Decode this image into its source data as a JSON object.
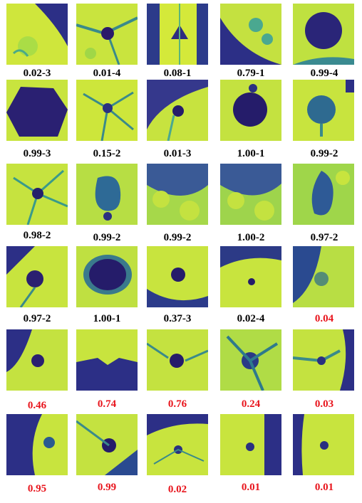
{
  "colors": {
    "black_label": "#000000",
    "red_label": "#e8141c",
    "tissue_bright": "#d8e93a",
    "tissue_mid": "#94d44a",
    "tissue_green": "#2fb47c",
    "teal": "#2a788e",
    "dark": "#3b1f7a",
    "navy": "#2c2f86"
  },
  "rows": [
    {
      "cells": [
        {
          "label": "0.02-3",
          "label_color": "black"
        },
        {
          "label": "0.01-4",
          "label_color": "black"
        },
        {
          "label": "0.08-1",
          "label_color": "black"
        },
        {
          "label": "0.79-1",
          "label_color": "black"
        },
        {
          "label": "0.99-4",
          "label_color": "black"
        }
      ]
    },
    {
      "cells": [
        {
          "label": "0.99-3",
          "label_color": "black"
        },
        {
          "label": "0.15-2",
          "label_color": "black"
        },
        {
          "label": "0.01-3",
          "label_color": "black"
        },
        {
          "label": "1.00-1",
          "label_color": "black"
        },
        {
          "label": "0.99-2",
          "label_color": "black"
        }
      ]
    },
    {
      "cells": [
        {
          "label": "0.98-2",
          "label_color": "black"
        },
        {
          "label": "0.99-2",
          "label_color": "black"
        },
        {
          "label": "0.99-2",
          "label_color": "black"
        },
        {
          "label": "1.00-2",
          "label_color": "black"
        },
        {
          "label": "0.97-2",
          "label_color": "black"
        }
      ]
    },
    {
      "cells": [
        {
          "label": "0.97-2",
          "label_color": "black"
        },
        {
          "label": "1.00-1",
          "label_color": "black"
        },
        {
          "label": "0.37-3",
          "label_color": "black"
        },
        {
          "label": "0.02-4",
          "label_color": "black"
        },
        {
          "label": "0.04",
          "label_color": "red"
        }
      ]
    },
    {
      "cells": [
        {
          "label": "0.46",
          "label_color": "red"
        },
        {
          "label": "0.74",
          "label_color": "red"
        },
        {
          "label": "0.76",
          "label_color": "red"
        },
        {
          "label": "0.24",
          "label_color": "red"
        },
        {
          "label": "0.03",
          "label_color": "red"
        }
      ]
    },
    {
      "cells": [
        {
          "label": "0.95",
          "label_color": "red"
        },
        {
          "label": "0.99",
          "label_color": "red"
        },
        {
          "label": "0.02",
          "label_color": "red"
        },
        {
          "label": "0.01",
          "label_color": "red"
        },
        {
          "label": "0.01",
          "label_color": "red"
        }
      ]
    }
  ]
}
